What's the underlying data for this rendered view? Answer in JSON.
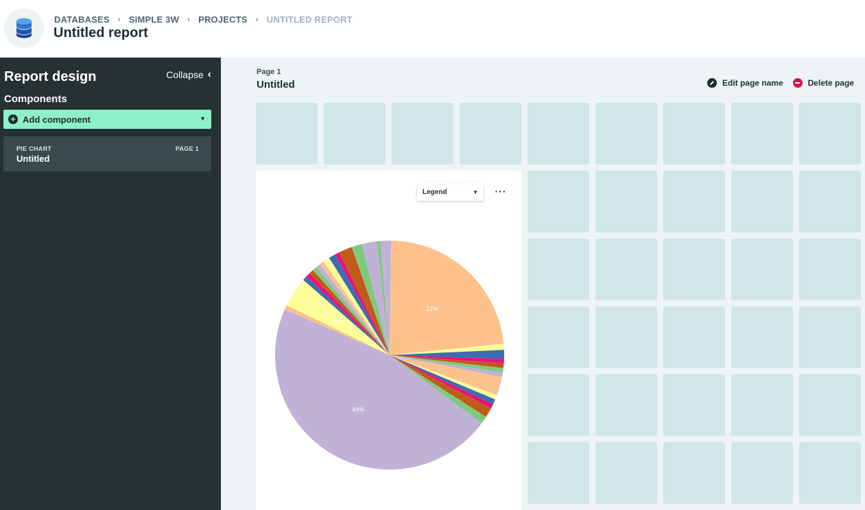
{
  "header": {
    "breadcrumb": [
      "DATABASES",
      "SIMPLE 3W",
      "PROJECTS",
      "UNTITLED REPORT"
    ],
    "title": "Untitled report",
    "logo_icon": "database-icon"
  },
  "sidebar": {
    "title": "Report design",
    "collapse_label": "Collapse",
    "components_label": "Components",
    "add_component_label": "Add component",
    "components": [
      {
        "type": "PIE CHART",
        "page": "PAGE 1",
        "name": "Untitled"
      }
    ]
  },
  "main": {
    "page_label": "Page 1",
    "page_name": "Untitled",
    "edit_page_label": "Edit page name",
    "delete_page_label": "Delete page",
    "legend_select_value": "Legend",
    "more_label": "···"
  },
  "colors": {
    "sidebar_bg": "#263132",
    "accent_green": "#8ef0c8",
    "grid_cell": "#d1e6e6",
    "delete_red": "#d6134f"
  },
  "chart_data": {
    "type": "pie",
    "start_angle_deg": -3,
    "slices": [
      {
        "value": 1.0,
        "color": "#c0b1d6"
      },
      {
        "value": 22.0,
        "color": "#fdc18c",
        "label": "22%"
      },
      {
        "value": 0.8,
        "color": "#fdfe9b"
      },
      {
        "value": 1.2,
        "color": "#3a6db1"
      },
      {
        "value": 0.6,
        "color": "#e8137d"
      },
      {
        "value": 0.6,
        "color": "#c25a19"
      },
      {
        "value": 0.6,
        "color": "#7fc97f"
      },
      {
        "value": 0.6,
        "color": "#c0b1d6"
      },
      {
        "value": 2.5,
        "color": "#fdc18c"
      },
      {
        "value": 0.6,
        "color": "#fdfe9b"
      },
      {
        "value": 0.7,
        "color": "#3a6db1"
      },
      {
        "value": 0.6,
        "color": "#e8137d"
      },
      {
        "value": 1.3,
        "color": "#c25a19"
      },
      {
        "value": 1.0,
        "color": "#7fc97f"
      },
      {
        "value": 44.0,
        "color": "#c0b1d6",
        "label": "44%"
      },
      {
        "value": 0.6,
        "color": "#fdc18c"
      },
      {
        "value": 4.0,
        "color": "#fdfe9b",
        "label": "4%"
      },
      {
        "value": 0.6,
        "color": "#3a6db1"
      },
      {
        "value": 0.6,
        "color": "#e8137d"
      },
      {
        "value": 0.6,
        "color": "#c25a19"
      },
      {
        "value": 0.6,
        "color": "#7fc97f"
      },
      {
        "value": 0.6,
        "color": "#c0b1d6"
      },
      {
        "value": 0.6,
        "color": "#fdc18c"
      },
      {
        "value": 0.9,
        "color": "#fdfe9b"
      },
      {
        "value": 0.9,
        "color": "#3a6db1"
      },
      {
        "value": 0.6,
        "color": "#e8137d"
      },
      {
        "value": 1.8,
        "color": "#c25a19"
      },
      {
        "value": 1.4,
        "color": "#7fc97f"
      },
      {
        "value": 2.0,
        "color": "#c0b1d6"
      },
      {
        "value": 0.45,
        "color": "#7fc97f"
      },
      {
        "value": 0.45,
        "color": "#c0b1d6"
      }
    ]
  }
}
